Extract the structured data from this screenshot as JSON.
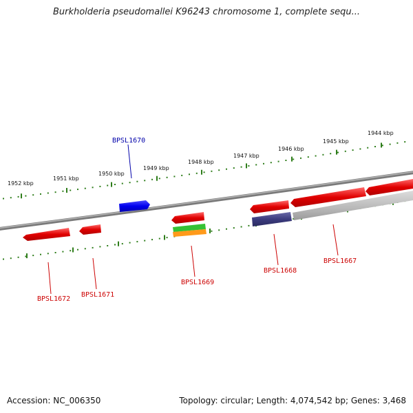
{
  "title": "Burkholderia pseudomallei K96243 chromosome 1, complete sequ...",
  "footer": {
    "accession": "Accession: NC_006350",
    "topology": "Topology: circular; Length: 4,074,542 bp; Genes: 3,468"
  },
  "colors": {
    "backbone": "#8a8a8a",
    "tick": "#2e7d1a",
    "forward_gene": "#0000ee",
    "reverse_gene": "#e00000",
    "label_forward": "#0000aa",
    "label_reverse": "#cc0000"
  },
  "kbp_labels": [
    "1952 kbp",
    "1951 kbp",
    "1950 kbp",
    "1949 kbp",
    "1948 kbp",
    "1947 kbp",
    "1946 kbp",
    "1945 kbp",
    "1944 kbp"
  ],
  "genes": [
    {
      "id": "BPSL1672",
      "strand": "reverse"
    },
    {
      "id": "BPSL1671",
      "strand": "reverse"
    },
    {
      "id": "BPSL1670",
      "strand": "forward"
    },
    {
      "id": "BPSL1669",
      "strand": "reverse"
    },
    {
      "id": "BPSL1668",
      "strand": "reverse"
    },
    {
      "id": "BPSL1667",
      "strand": "reverse"
    }
  ]
}
